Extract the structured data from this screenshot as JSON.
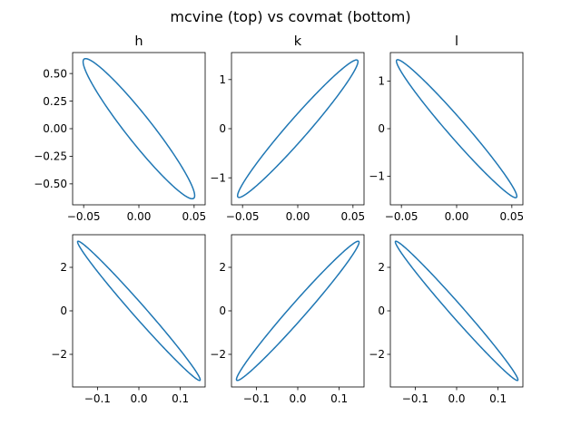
{
  "figure": {
    "suptitle": "mcvine (top) vs covmat (bottom)"
  },
  "colors": {
    "line": "#1f77b4",
    "axes": "#000000",
    "background": "#ffffff"
  },
  "chart_data": [
    {
      "type": "line",
      "title": "h",
      "xlim": [
        -0.06,
        0.06
      ],
      "ylim": [
        -0.69,
        0.69
      ],
      "xticks": [
        -0.05,
        0.0,
        0.05
      ],
      "xtick_labels": [
        "−0.05",
        "0.00",
        "0.05"
      ],
      "yticks": [
        -0.5,
        -0.25,
        0.0,
        0.25,
        0.5
      ],
      "ytick_labels": [
        "−0.50",
        "−0.25",
        "0.00",
        "0.25",
        "0.50"
      ],
      "ellipse": {
        "cx": 0.0,
        "cy": 0.0,
        "sx": 0.0505,
        "sy": 0.635,
        "rho": -0.955
      },
      "grid": false
    },
    {
      "type": "line",
      "title": "k",
      "xlim": [
        -0.06,
        0.06
      ],
      "ylim": [
        -1.55,
        1.55
      ],
      "xticks": [
        -0.05,
        0.0,
        0.05
      ],
      "xtick_labels": [
        "−0.05",
        "0.00",
        "0.05"
      ],
      "yticks": [
        -1,
        0,
        1
      ],
      "ytick_labels": [
        "−1",
        "0",
        "1"
      ],
      "ellipse": {
        "cx": 0.0,
        "cy": 0.0,
        "sx": 0.0545,
        "sy": 1.4,
        "rho": 0.975
      },
      "grid": false
    },
    {
      "type": "line",
      "title": "l",
      "xlim": [
        -0.06,
        0.06
      ],
      "ylim": [
        -1.6,
        1.6
      ],
      "xticks": [
        -0.05,
        0.0,
        0.05
      ],
      "xtick_labels": [
        "−0.05",
        "0.00",
        "0.05"
      ],
      "yticks": [
        -1,
        0,
        1
      ],
      "ytick_labels": [
        "−1",
        "0",
        "1"
      ],
      "ellipse": {
        "cx": 0.0,
        "cy": 0.0,
        "sx": 0.0545,
        "sy": 1.45,
        "rho": -0.98
      },
      "grid": false
    },
    {
      "type": "line",
      "title": "",
      "xlim": [
        -0.16,
        0.16
      ],
      "ylim": [
        -3.5,
        3.5
      ],
      "xticks": [
        -0.1,
        0.0,
        0.1
      ],
      "xtick_labels": [
        "−0.1",
        "0.0",
        "0.1"
      ],
      "yticks": [
        -2,
        0,
        2
      ],
      "ytick_labels": [
        "−2",
        "0",
        "2"
      ],
      "ellipse": {
        "cx": 0.0,
        "cy": 0.0,
        "sx": 0.148,
        "sy": 3.2,
        "rho": -0.99
      },
      "grid": false
    },
    {
      "type": "line",
      "title": "",
      "xlim": [
        -0.16,
        0.16
      ],
      "ylim": [
        -3.5,
        3.5
      ],
      "xticks": [
        -0.1,
        0.0,
        0.1
      ],
      "xtick_labels": [
        "−0.1",
        "0.0",
        "0.1"
      ],
      "yticks": [
        -2,
        0,
        2
      ],
      "ytick_labels": [
        "−2",
        "0",
        "2"
      ],
      "ellipse": {
        "cx": 0.0,
        "cy": 0.0,
        "sx": 0.148,
        "sy": 3.2,
        "rho": 0.985
      },
      "grid": false
    },
    {
      "type": "line",
      "title": "",
      "xlim": [
        -0.16,
        0.16
      ],
      "ylim": [
        -3.5,
        3.5
      ],
      "xticks": [
        -0.1,
        0.0,
        0.1
      ],
      "xtick_labels": [
        "−0.1",
        "0.0",
        "0.1"
      ],
      "yticks": [
        -2,
        0,
        2
      ],
      "ytick_labels": [
        "−2",
        "0",
        "2"
      ],
      "ellipse": {
        "cx": 0.0,
        "cy": 0.0,
        "sx": 0.148,
        "sy": 3.2,
        "rho": -0.99
      },
      "grid": false
    }
  ]
}
